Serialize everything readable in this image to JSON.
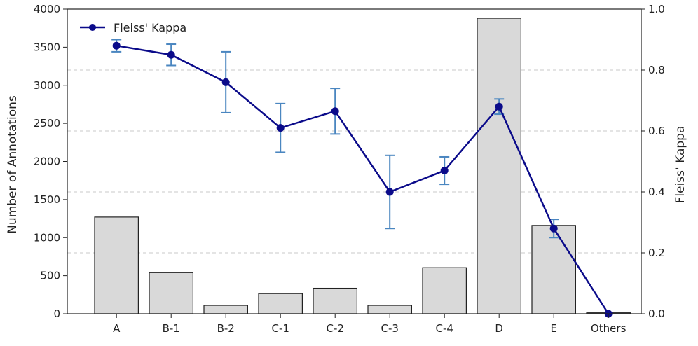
{
  "chart_data": {
    "type": "bar+line",
    "categories": [
      "A",
      "B-1",
      "B-2",
      "C-1",
      "C-2",
      "C-3",
      "C-4",
      "D",
      "E",
      "Others"
    ],
    "bars": {
      "name": "Number of Annotations",
      "values": [
        1270,
        540,
        110,
        265,
        335,
        110,
        605,
        3880,
        1160,
        12
      ],
      "color": "#d9d9d9",
      "edge_color": "#222222"
    },
    "line": {
      "name": "Fleiss' Kappa",
      "values": [
        0.88,
        0.85,
        0.76,
        0.61,
        0.665,
        0.4,
        0.47,
        0.68,
        0.28,
        0.0
      ],
      "errors": [
        0.02,
        0.035,
        0.1,
        0.08,
        0.075,
        0.12,
        0.045,
        0.025,
        0.03,
        0.0
      ],
      "color": "#0b0b8a",
      "errorbar_color": "#4a86c0"
    },
    "ylabel_left": "Number of Annotations",
    "ylabel_right": "Fleiss' Kappa",
    "ylim_left": [
      0,
      4000
    ],
    "ylim_right": [
      0,
      1.0
    ],
    "yticks_left": [
      "0",
      "500",
      "1000",
      "1500",
      "2000",
      "2500",
      "3000",
      "3500",
      "4000"
    ],
    "yticks_right": [
      "0.0",
      "0.2",
      "0.4",
      "0.6",
      "0.8",
      "1.0"
    ],
    "grid": "horizontal dashed (right axis)",
    "legend": {
      "position": "top-left",
      "entries": [
        "Fleiss' Kappa"
      ]
    }
  }
}
